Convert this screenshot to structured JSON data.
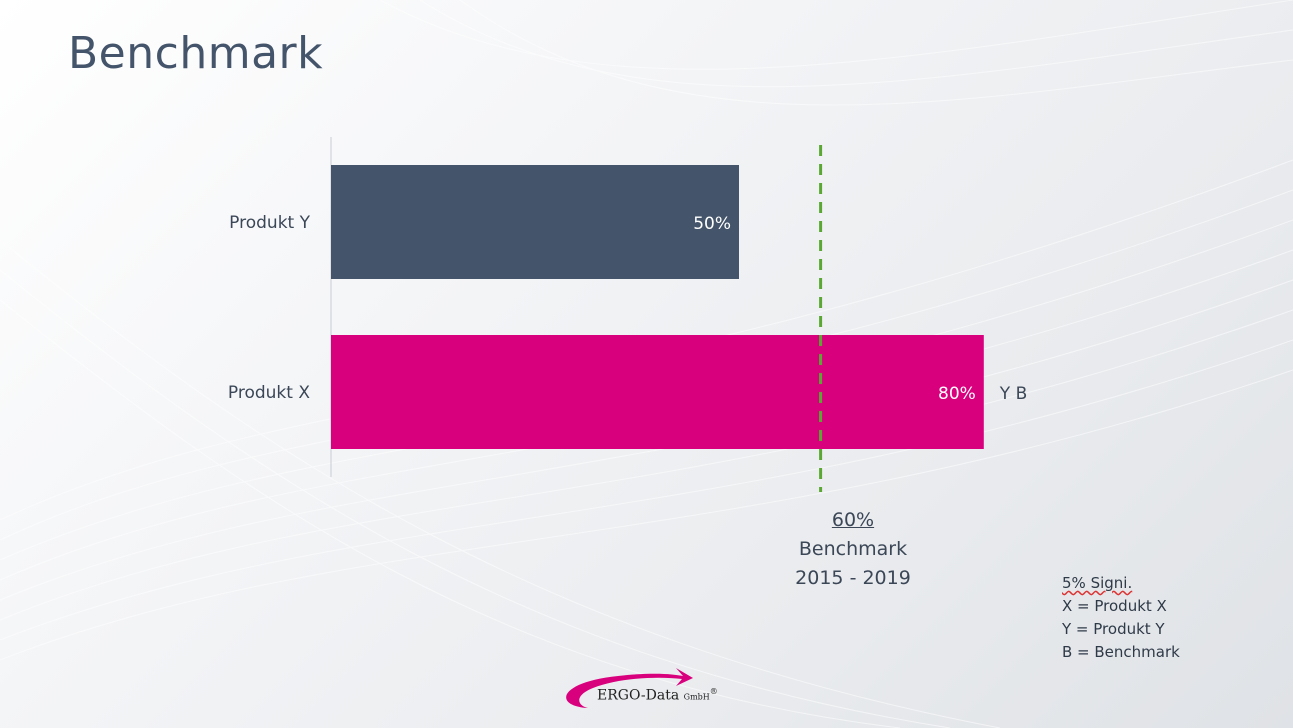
{
  "slide": {
    "title": "Benchmark"
  },
  "chart_data": {
    "type": "bar",
    "orientation": "horizontal",
    "categories": [
      "Produkt Y",
      "Produkt X"
    ],
    "values": [
      50,
      80
    ],
    "value_labels": [
      "50%",
      "80%"
    ],
    "bar_colors": [
      "#44546a",
      "#d9007e"
    ],
    "annotations": [
      "",
      "Y B"
    ],
    "xlim": [
      0,
      100
    ],
    "benchmark": {
      "value": 60,
      "line_color": "#5aa832",
      "label_value": "60%",
      "label_name": "Benchmark",
      "label_period": "2015 - 2019"
    },
    "grid": false
  },
  "legend_note": {
    "lines": [
      "5% Signi.",
      "X = Produkt X",
      "Y = Produkt Y",
      "B = Benchmark"
    ]
  },
  "logo": {
    "name": "ERGO-Data",
    "suffix": "GmbH",
    "mark": "®",
    "color": "#d9007e"
  }
}
